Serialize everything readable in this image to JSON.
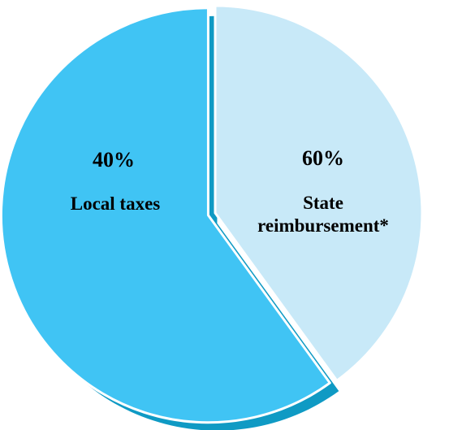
{
  "chart_data": {
    "type": "pie",
    "title": "",
    "slices": [
      {
        "label_lines": [
          "Local taxes"
        ],
        "percent_label": "40%",
        "value": 40,
        "color": "#c8e9f8",
        "exploded": false
      },
      {
        "label_lines": [
          "State",
          "reimbursement*"
        ],
        "percent_label": "60%",
        "value": 60,
        "color": "#40c4f4",
        "shadow_color": "#0f9ac4",
        "exploded": true
      }
    ],
    "start_angle": "12 o'clock",
    "direction": "clockwise",
    "legend": "none"
  }
}
